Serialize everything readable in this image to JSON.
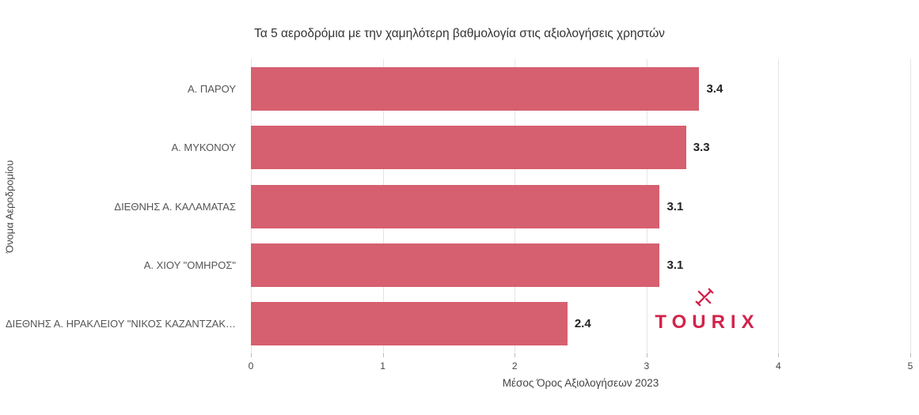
{
  "chart_data": {
    "type": "bar",
    "orientation": "horizontal",
    "title": "Τα 5 αεροδρόμια με την χαμηλότερη βαθμολογία στις αξιολογήσεις χρηστών",
    "categories": [
      "Α. ΠΑΡΟΥ",
      "Α. ΜΥΚΟΝΟΥ",
      "ΔΙΕΘΝΗΣ Α. ΚΑΛΑΜΑΤΑΣ",
      "Α. ΧΙΟΥ \"ΟΜΗΡΟΣ\"",
      "ΔΙΕΘΝΗΣ Α. ΗΡΑΚΛΕΙΟΥ \"ΝΙΚΟΣ ΚΑΖΑΝΤΖΑΚ…"
    ],
    "values": [
      3.4,
      3.3,
      3.1,
      3.1,
      2.4
    ],
    "value_labels": [
      "3.4",
      "3.3",
      "3.1",
      "3.1",
      "2.4"
    ],
    "xlabel": "Μέσος Όρος Αξιολογήσεων 2023",
    "ylabel": "Όνομα Αεροδρομίου",
    "xlim": [
      0,
      5
    ],
    "xticks": [
      0,
      1,
      2,
      3,
      4,
      5
    ],
    "grid": true,
    "legend": "none",
    "bar_color": "#d6606f"
  },
  "logo": {
    "text": "TOURIX",
    "color": "#d2234a"
  }
}
